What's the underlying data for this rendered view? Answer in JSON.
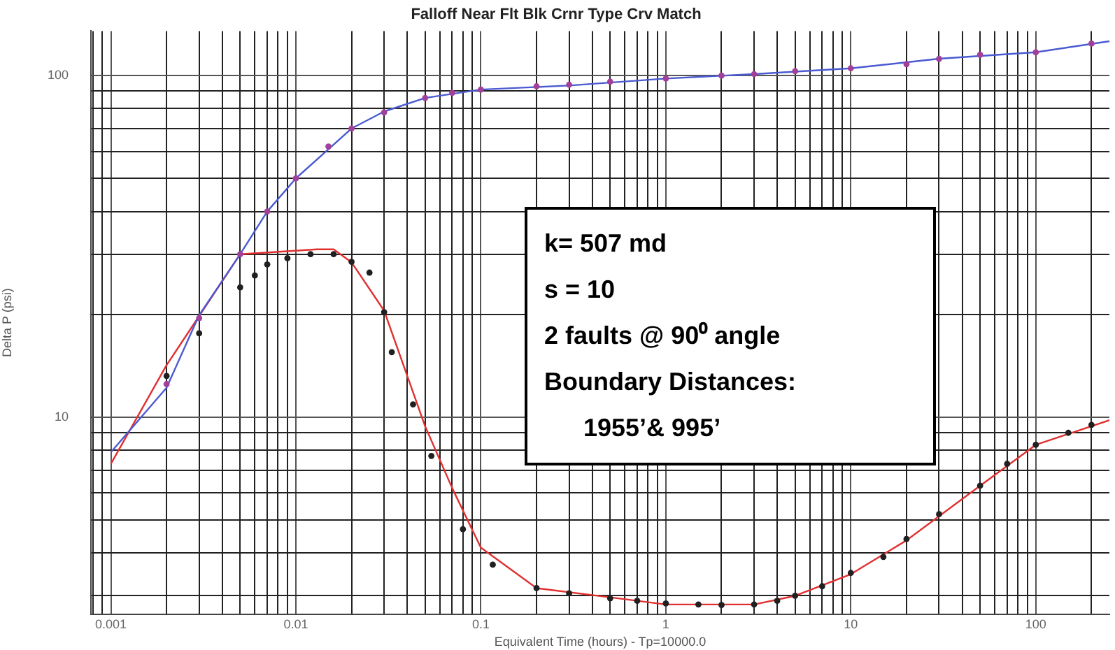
{
  "chart_data": {
    "type": "line",
    "title": "Falloff Near Flt Blk Crnr Type Crv Match",
    "xlabel": "Equivalent Time (hours) - Tp=10000.0",
    "ylabel": "Delta P (psi)",
    "log": "xy",
    "grid": true,
    "xlim": [
      0.00078,
      250
    ],
    "ylim": [
      2.65,
      135
    ],
    "xticks": [
      {
        "value": 0.0008,
        "label": null
      },
      {
        "value": 0.0009,
        "label": null
      },
      0.001,
      {
        "value": 0.002,
        "label": null
      },
      {
        "value": 0.003,
        "label": null
      },
      {
        "value": 0.004,
        "label": null
      },
      {
        "value": 0.005,
        "label": null
      },
      {
        "value": 0.006,
        "label": null
      },
      {
        "value": 0.007,
        "label": null
      },
      {
        "value": 0.008,
        "label": null
      },
      {
        "value": 0.009,
        "label": null
      },
      0.01,
      {
        "value": 0.02,
        "label": null
      },
      {
        "value": 0.03,
        "label": null
      },
      {
        "value": 0.04,
        "label": null
      },
      {
        "value": 0.05,
        "label": null
      },
      {
        "value": 0.06,
        "label": null
      },
      {
        "value": 0.07,
        "label": null
      },
      {
        "value": 0.08,
        "label": null
      },
      {
        "value": 0.09,
        "label": null
      },
      0.1,
      {
        "value": 0.2,
        "label": null
      },
      {
        "value": 0.3,
        "label": null
      },
      {
        "value": 0.4,
        "label": null
      },
      {
        "value": 0.5,
        "label": null
      },
      {
        "value": 0.6,
        "label": null
      },
      {
        "value": 0.7,
        "label": null
      },
      {
        "value": 0.8,
        "label": null
      },
      {
        "value": 0.9,
        "label": null
      },
      1,
      {
        "value": 2,
        "label": null
      },
      {
        "value": 3,
        "label": null
      },
      {
        "value": 4,
        "label": null
      },
      {
        "value": 5,
        "label": null
      },
      {
        "value": 6,
        "label": null
      },
      {
        "value": 7,
        "label": null
      },
      {
        "value": 8,
        "label": null
      },
      {
        "value": 9,
        "label": null
      },
      10,
      {
        "value": 20,
        "label": null
      },
      {
        "value": 30,
        "label": null
      },
      {
        "value": 40,
        "label": null
      },
      {
        "value": 50,
        "label": null
      },
      {
        "value": 60,
        "label": null
      },
      {
        "value": 70,
        "label": null
      },
      {
        "value": 80,
        "label": null
      },
      {
        "value": 90,
        "label": null
      },
      100,
      {
        "value": 200,
        "label": null
      }
    ],
    "yticks": [
      {
        "value": 3,
        "label": null
      },
      {
        "value": 4,
        "label": null
      },
      {
        "value": 5,
        "label": null
      },
      {
        "value": 6,
        "label": null
      },
      {
        "value": 7,
        "label": null
      },
      {
        "value": 8,
        "label": null
      },
      {
        "value": 9,
        "label": null
      },
      10,
      {
        "value": 20,
        "label": null
      },
      {
        "value": 30,
        "label": null
      },
      {
        "value": 40,
        "label": null
      },
      {
        "value": 50,
        "label": null
      },
      {
        "value": 60,
        "label": null
      },
      {
        "value": 70,
        "label": null
      },
      {
        "value": 80,
        "label": null
      },
      {
        "value": 90,
        "label": null
      },
      100
    ],
    "series": [
      {
        "color": "#4a5ad0",
        "marker": "none",
        "x": [
          0.001,
          0.002,
          0.003,
          0.005,
          0.007,
          0.01,
          0.02,
          0.03,
          0.05,
          0.1,
          0.3,
          1,
          3,
          10,
          30,
          100,
          250
        ],
        "values": [
          7.9,
          12.2,
          19.9,
          30,
          40,
          50,
          70,
          78.5,
          86,
          91,
          93.5,
          98,
          101,
          105,
          112,
          117,
          126
        ]
      },
      {
        "type": "scatter",
        "color": "#a0409a",
        "marker": "circle",
        "x": [
          0.002,
          0.003,
          0.005,
          0.007,
          0.01,
          0.015,
          0.02,
          0.03,
          0.05,
          0.07,
          0.1,
          0.2,
          0.3,
          0.5,
          1,
          2,
          3,
          5,
          10,
          20,
          30,
          50,
          100,
          200
        ],
        "values": [
          12.5,
          19.5,
          30,
          40,
          50,
          62,
          70,
          78,
          86,
          89,
          91,
          93,
          94,
          96,
          98,
          100,
          101,
          103,
          105,
          108,
          112,
          115,
          117,
          124
        ]
      },
      {
        "color": "#e03030",
        "marker": "none",
        "x": [
          0.001,
          0.002,
          0.005,
          0.013,
          0.016,
          0.02,
          0.03,
          0.05,
          0.07,
          0.1,
          0.2,
          0.5,
          1,
          3,
          5,
          10,
          20,
          50,
          100,
          250
        ],
        "values": [
          7.3,
          14.2,
          30,
          31,
          31,
          28.4,
          20.5,
          9.4,
          6.2,
          4.15,
          3.16,
          2.97,
          2.83,
          2.83,
          3,
          3.47,
          4.36,
          6.3,
          8.3,
          9.8
        ]
      },
      {
        "type": "scatter",
        "color": "#202020",
        "marker": "circle",
        "x": [
          0.002,
          0.003,
          0.005,
          0.006,
          0.007,
          0.009,
          0.012,
          0.016,
          0.02,
          0.025,
          0.03,
          0.033,
          0.043,
          0.054,
          0.08,
          0.116,
          0.2,
          0.3,
          0.5,
          0.7,
          1,
          1.5,
          2,
          3,
          4,
          5,
          7,
          10,
          15,
          20,
          30,
          50,
          70,
          100,
          150,
          200
        ],
        "values": [
          13.2,
          17.6,
          24,
          26,
          28,
          29.2,
          30,
          30,
          28.5,
          26.5,
          20.3,
          15.5,
          10.9,
          7.7,
          4.7,
          3.7,
          3.16,
          3.05,
          2.95,
          2.9,
          2.85,
          2.83,
          2.82,
          2.83,
          2.9,
          3,
          3.2,
          3.5,
          3.9,
          4.4,
          5.2,
          6.3,
          7.3,
          8.3,
          9,
          9.5
        ]
      }
    ],
    "annotations": [
      "k= 507 md",
      "s = 10",
      "2 faults @ 90⁰ angle",
      "Boundary Distances:",
      "1955’& 995’"
    ]
  }
}
